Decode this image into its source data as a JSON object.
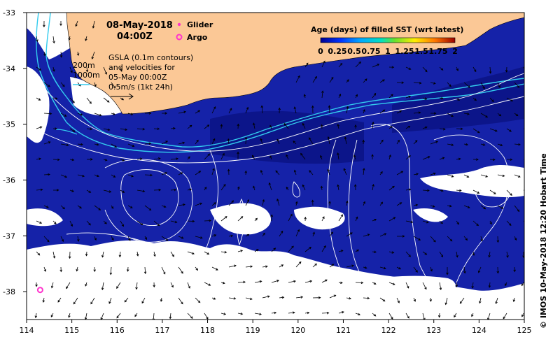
{
  "timestamp": {
    "date": "08-May-2018",
    "time": "04:00Z"
  },
  "markers_legend": [
    {
      "label": "Glider",
      "color": "#ff33cc",
      "symbol": "dot"
    },
    {
      "label": "Argo",
      "color": "#ff33cc",
      "symbol": "ring"
    }
  ],
  "contour_labels": [
    "200m",
    "1000m"
  ],
  "gsla_note": [
    "GSLA (0.1m contours)",
    "and velocities for",
    "05-May 00:00Z",
    "0.5m/s (1kt 24h)"
  ],
  "colorbar": {
    "title": "Age (days) of filled SST (wrt latest)",
    "ticks": [
      "0",
      "0.25",
      "0.5",
      "0.75",
      "1",
      "1.25",
      "1.5",
      "1.75",
      "2"
    ],
    "range": [
      0,
      2
    ]
  },
  "axes": {
    "lon_ticks": [
      "114",
      "115",
      "116",
      "117",
      "118",
      "119",
      "120",
      "121",
      "122",
      "123",
      "124",
      "125"
    ],
    "lat_ticks": [
      "-33",
      "-34",
      "-35",
      "-36",
      "-37",
      "-38"
    ],
    "lon_range": [
      114,
      125
    ],
    "lat_range": [
      -38.5,
      -33
    ]
  },
  "argo_position": {
    "lon": 114.3,
    "lat": -37.97
  },
  "credit": "© IMOS 10-May-2018 12:20 Hobart Time",
  "colors": {
    "ocean_sst": "#1522a8",
    "ocean_deep": "#0c158a",
    "land": "#fbc896",
    "no_data": "#ffffff",
    "contour": "#ffffff",
    "isobath": "#33ccee",
    "marker": "#ff33cc"
  }
}
